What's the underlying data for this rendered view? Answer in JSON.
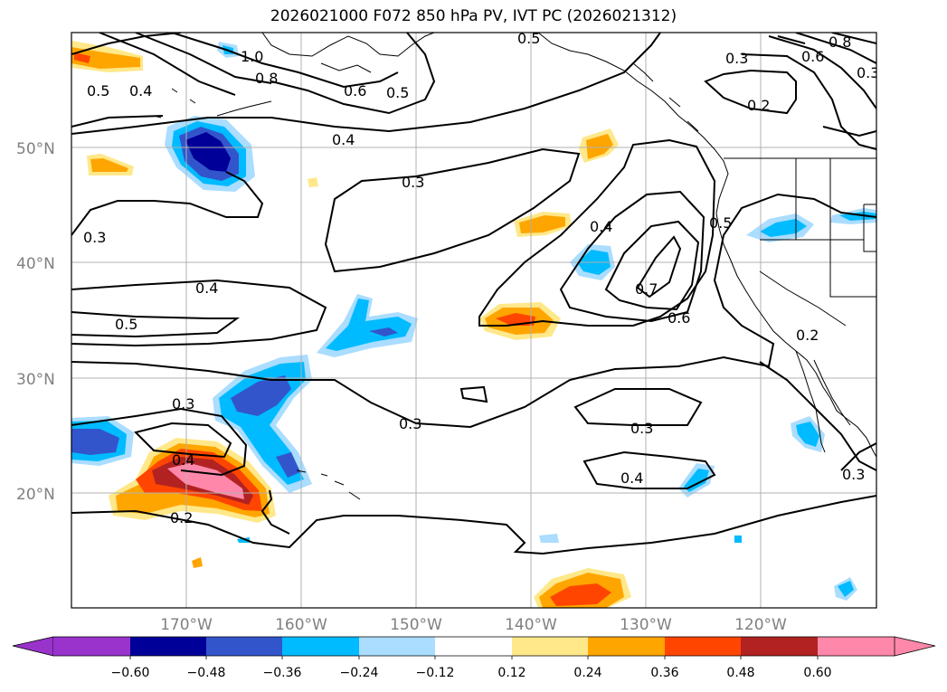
{
  "title": "2026021000 F072 850 hPa PV, IVT PC (2026021312)",
  "lat_labels": [
    "50°N",
    "40°N",
    "30°N",
    "20°N"
  ],
  "lon_labels": [
    "170°W",
    "160°W",
    "150°W",
    "140°W",
    "130°W",
    "120°W"
  ],
  "colorbar": {
    "tick_labels": [
      "−0.60",
      "−0.48",
      "−0.36",
      "−0.24",
      "−0.12",
      "0.12",
      "0.24",
      "0.36",
      "0.48",
      "0.60"
    ],
    "colors": [
      "#9933cc",
      "#000099",
      "#3355cc",
      "#00bbff",
      "#aaddff",
      "#ffffff",
      "#ffe88a",
      "#ffa500",
      "#ff4500",
      "#b22222",
      "#ff88aa"
    ]
  },
  "contour_labels": [
    "1.0",
    "0.8",
    "0.6",
    "0.5",
    "0.5",
    "0.4",
    "0.4",
    "0.3",
    "0.3",
    "0.4",
    "0.5",
    "0.3",
    "0.4",
    "0.2",
    "0.3",
    "0.3",
    "0.4",
    "0.4",
    "0.7",
    "0.6",
    "0.5",
    "0.5",
    "0.3",
    "0.6",
    "0.8",
    "0.2",
    "0.3",
    "0.2",
    "0.3"
  ]
}
